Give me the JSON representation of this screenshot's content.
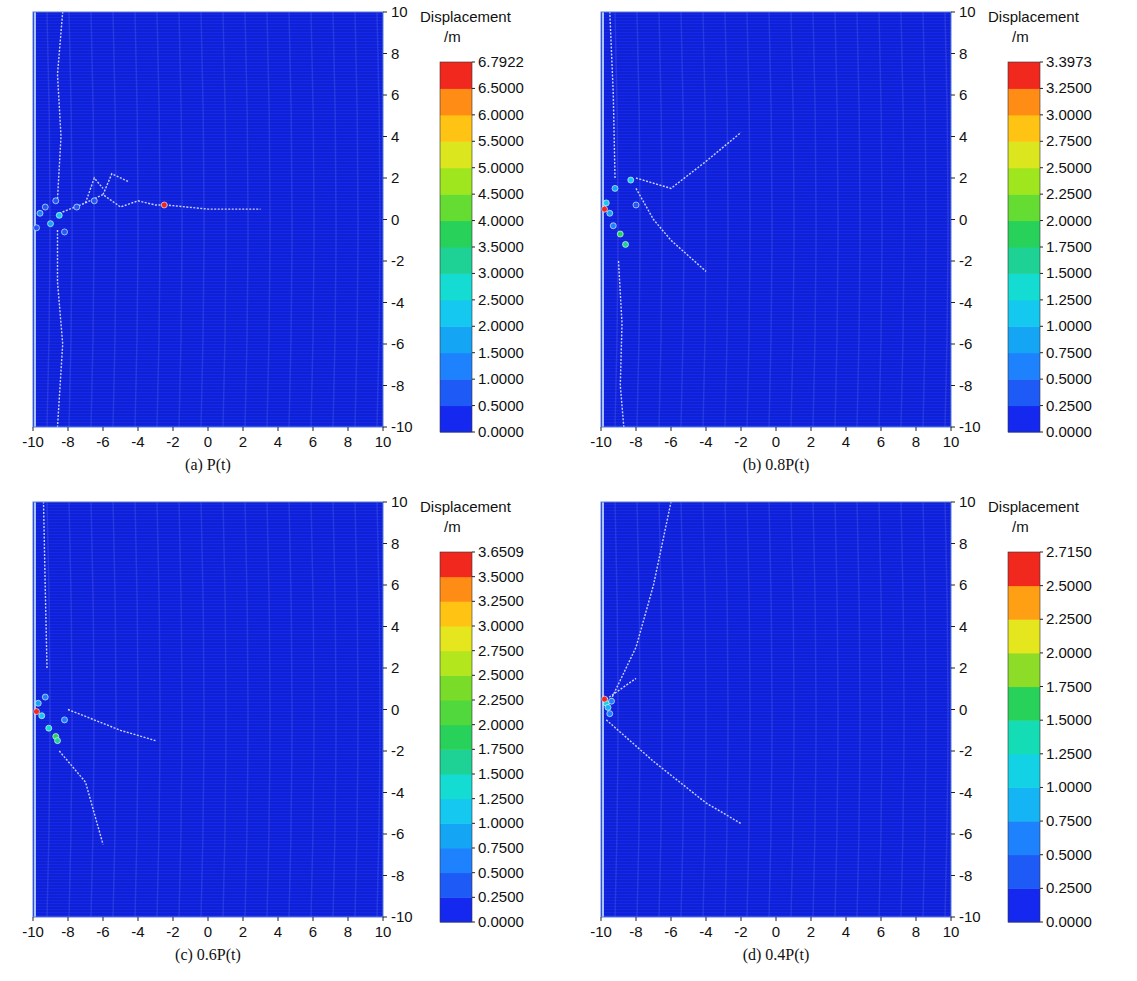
{
  "chart_data": [
    {
      "type": "scatter",
      "title": "(a) P(t)",
      "xlim": [
        -10,
        10
      ],
      "ylim": [
        -10,
        10
      ],
      "xticks": [
        -10,
        -8,
        -6,
        -4,
        -2,
        0,
        2,
        4,
        6,
        8,
        10
      ],
      "yticks": [
        -10,
        -8,
        -6,
        -4,
        -2,
        0,
        2,
        4,
        6,
        8,
        10
      ],
      "color_label": "Displacement",
      "color_unit": "/m",
      "color_range": [
        0,
        6.7922
      ],
      "color_ticks": [
        {
          "value": 0,
          "label": "0.0000"
        },
        {
          "value": 0.5,
          "label": "0.5000"
        },
        {
          "value": 1,
          "label": "1.0000"
        },
        {
          "value": 1.5,
          "label": "1.5000"
        },
        {
          "value": 2,
          "label": "2.0000"
        },
        {
          "value": 2.5,
          "label": "2.5000"
        },
        {
          "value": 3,
          "label": "3.0000"
        },
        {
          "value": 3.5,
          "label": "3.5000"
        },
        {
          "value": 4,
          "label": "4.0000"
        },
        {
          "value": 4.5,
          "label": "4.5000"
        },
        {
          "value": 5,
          "label": "5.0000"
        },
        {
          "value": 5.5,
          "label": "5.5000"
        },
        {
          "value": 6,
          "label": "6.0000"
        },
        {
          "value": 6.5,
          "label": "6.5000"
        },
        {
          "value": 6.7922,
          "label": "6.7922"
        }
      ],
      "colors": [
        "#1428f0",
        "#1e5af5",
        "#1e82ff",
        "#14a5f5",
        "#14c8f0",
        "#14dcd2",
        "#1ed296",
        "#28d25a",
        "#64dc32",
        "#a0e61e",
        "#dce61e",
        "#ffc314",
        "#ff8c14",
        "#f0281e"
      ],
      "cracks": [
        [
          [
            -8.5,
            0.3
          ],
          [
            -7,
            0.8
          ],
          [
            -6,
            1.2
          ],
          [
            -5,
            0.6
          ],
          [
            -4,
            0.9
          ],
          [
            -3,
            0.7
          ],
          [
            -2.4,
            0.7
          ],
          [
            0,
            0.5
          ],
          [
            3,
            0.5
          ]
        ],
        [
          [
            -6,
            1.2
          ],
          [
            -5.5,
            2.2
          ],
          [
            -4.5,
            1.8
          ]
        ],
        [
          [
            -8.6,
            1
          ],
          [
            -8.4,
            4
          ],
          [
            -8.6,
            7
          ],
          [
            -8.3,
            10
          ]
        ],
        [
          [
            -8.6,
            -0.5
          ],
          [
            -8.6,
            -3
          ],
          [
            -8.3,
            -6
          ],
          [
            -8.6,
            -10
          ]
        ],
        [
          [
            -7,
            0.8
          ],
          [
            -6.5,
            2
          ],
          [
            -6,
            1.5
          ]
        ]
      ],
      "fragments": {
        "x": [
          -9.6,
          -9.3,
          -9.0,
          -8.7,
          -8.5,
          -9.8,
          -8.2,
          -2.5,
          -7.5,
          -6.5
        ],
        "y": [
          0.3,
          0.6,
          -0.2,
          0.9,
          0.2,
          -0.4,
          -0.6,
          0.7,
          0.6,
          0.9
        ],
        "values": [
          1.2,
          0.8,
          1.6,
          0.6,
          2.1,
          0.9,
          0.7,
          6.7922,
          0.6,
          0.55
        ]
      }
    },
    {
      "type": "scatter",
      "title": "(b) 0.8P(t)",
      "xlim": [
        -10,
        10
      ],
      "ylim": [
        -10,
        10
      ],
      "xticks": [
        -10,
        -8,
        -6,
        -4,
        -2,
        0,
        2,
        4,
        6,
        8,
        10
      ],
      "yticks": [
        -10,
        -8,
        -6,
        -4,
        -2,
        0,
        2,
        4,
        6,
        8,
        10
      ],
      "color_label": "Displacement",
      "color_unit": "/m",
      "color_range": [
        0,
        3.3973
      ],
      "color_ticks": [
        {
          "value": 0,
          "label": "0.0000"
        },
        {
          "value": 0.25,
          "label": "0.2500"
        },
        {
          "value": 0.5,
          "label": "0.5000"
        },
        {
          "value": 0.75,
          "label": "0.7500"
        },
        {
          "value": 1,
          "label": "1.0000"
        },
        {
          "value": 1.25,
          "label": "1.2500"
        },
        {
          "value": 1.5,
          "label": "1.5000"
        },
        {
          "value": 1.75,
          "label": "1.7500"
        },
        {
          "value": 2,
          "label": "2.0000"
        },
        {
          "value": 2.25,
          "label": "2.2500"
        },
        {
          "value": 2.5,
          "label": "2.5000"
        },
        {
          "value": 2.75,
          "label": "2.7500"
        },
        {
          "value": 3,
          "label": "3.0000"
        },
        {
          "value": 3.25,
          "label": "3.2500"
        },
        {
          "value": 3.3973,
          "label": "3.3973"
        }
      ],
      "colors": [
        "#1428f0",
        "#1e5af5",
        "#1e82ff",
        "#14a5f5",
        "#14c8f0",
        "#14dcd2",
        "#1ed296",
        "#28d25a",
        "#64dc32",
        "#a0e61e",
        "#dce61e",
        "#ffc314",
        "#ff8c14",
        "#f0281e"
      ],
      "cracks": [
        [
          [
            -8,
            2
          ],
          [
            -6,
            1.5
          ],
          [
            -4,
            2.8
          ],
          [
            -2,
            4.2
          ]
        ],
        [
          [
            -9,
            -2
          ],
          [
            -8.8,
            -5
          ],
          [
            -8.9,
            -8
          ],
          [
            -8.7,
            -10
          ]
        ],
        [
          [
            -9.2,
            2
          ],
          [
            -9.3,
            6
          ],
          [
            -9.5,
            10
          ]
        ],
        [
          [
            -8,
            1.5
          ],
          [
            -7,
            0
          ],
          [
            -6,
            -1
          ],
          [
            -4,
            -2.5
          ]
        ]
      ],
      "fragments": {
        "x": [
          -9.7,
          -9.5,
          -9.2,
          -8.9,
          -8.6,
          -9.3,
          -8.3,
          -9.8,
          -8
        ],
        "y": [
          0.8,
          0.3,
          1.5,
          -0.7,
          -1.2,
          -0.3,
          1.9,
          0.5,
          0.7
        ],
        "values": [
          1.1,
          0.9,
          0.8,
          1.9,
          1.6,
          0.6,
          1.2,
          3.3973,
          0.4
        ]
      }
    },
    {
      "type": "scatter",
      "title": "(c) 0.6P(t)",
      "xlim": [
        -10,
        10
      ],
      "ylim": [
        -10,
        10
      ],
      "xticks": [
        -10,
        -8,
        -6,
        -4,
        -2,
        0,
        2,
        4,
        6,
        8,
        10
      ],
      "yticks": [
        -10,
        -8,
        -6,
        -4,
        -2,
        0,
        2,
        4,
        6,
        8,
        10
      ],
      "color_label": "Displacement",
      "color_unit": "/m",
      "color_range": [
        0,
        3.6509
      ],
      "color_ticks": [
        {
          "value": 0,
          "label": "0.0000"
        },
        {
          "value": 0.25,
          "label": "0.2500"
        },
        {
          "value": 0.5,
          "label": "0.5000"
        },
        {
          "value": 0.75,
          "label": "0.7500"
        },
        {
          "value": 1,
          "label": "1.0000"
        },
        {
          "value": 1.25,
          "label": "1.2500"
        },
        {
          "value": 1.5,
          "label": "1.5000"
        },
        {
          "value": 1.75,
          "label": "1.7500"
        },
        {
          "value": 2,
          "label": "2.0000"
        },
        {
          "value": 2.25,
          "label": "2.2500"
        },
        {
          "value": 2.5,
          "label": "2.5000"
        },
        {
          "value": 2.75,
          "label": "2.7500"
        },
        {
          "value": 3,
          "label": "3.0000"
        },
        {
          "value": 3.25,
          "label": "3.2500"
        },
        {
          "value": 3.5,
          "label": "3.5000"
        },
        {
          "value": 3.6509,
          "label": "3.6509"
        }
      ],
      "colors": [
        "#1428f0",
        "#1e5af5",
        "#1e82ff",
        "#14a5f5",
        "#14c8f0",
        "#14dcd2",
        "#1ed296",
        "#28d25a",
        "#50d83c",
        "#78dc28",
        "#b4e61e",
        "#e6e61e",
        "#ffc314",
        "#ff8c14",
        "#f0281e"
      ],
      "cracks": [
        [
          [
            -8.5,
            -2
          ],
          [
            -7,
            -3.5
          ],
          [
            -6,
            -6.5
          ]
        ],
        [
          [
            -9.2,
            2
          ],
          [
            -9.3,
            6
          ],
          [
            -9.4,
            10
          ]
        ],
        [
          [
            -8,
            0
          ],
          [
            -5,
            -1
          ],
          [
            -3,
            -1.5
          ]
        ]
      ],
      "fragments": {
        "x": [
          -9.7,
          -9.5,
          -9.1,
          -8.7,
          -8.6,
          -9.3,
          -9.8,
          -8.2
        ],
        "y": [
          0.3,
          -0.3,
          -0.9,
          -1.3,
          -1.5,
          0.6,
          -0.1,
          -0.5
        ],
        "values": [
          0.9,
          1.1,
          1.3,
          1.9,
          1.7,
          0.6,
          3.6509,
          0.5
        ]
      }
    },
    {
      "type": "scatter",
      "title": "(d) 0.4P(t)",
      "xlim": [
        -10,
        10
      ],
      "ylim": [
        -10,
        10
      ],
      "xticks": [
        -10,
        -8,
        -6,
        -4,
        -2,
        0,
        2,
        4,
        6,
        8,
        10
      ],
      "yticks": [
        -10,
        -8,
        -6,
        -4,
        -2,
        0,
        2,
        4,
        6,
        8,
        10
      ],
      "color_label": "Displacement",
      "color_unit": "/m",
      "color_range": [
        0,
        2.715
      ],
      "color_ticks": [
        {
          "value": 0,
          "label": "0.0000"
        },
        {
          "value": 0.25,
          "label": "0.2500"
        },
        {
          "value": 0.5,
          "label": "0.5000"
        },
        {
          "value": 0.75,
          "label": "0.7500"
        },
        {
          "value": 1,
          "label": "1.0000"
        },
        {
          "value": 1.25,
          "label": "1.2500"
        },
        {
          "value": 1.5,
          "label": "1.5000"
        },
        {
          "value": 1.75,
          "label": "1.7500"
        },
        {
          "value": 2,
          "label": "2.0000"
        },
        {
          "value": 2.25,
          "label": "2.2500"
        },
        {
          "value": 2.5,
          "label": "2.5000"
        },
        {
          "value": 2.715,
          "label": "2.7150"
        }
      ],
      "colors": [
        "#1428f0",
        "#1e5af5",
        "#1e82ff",
        "#14b4f5",
        "#14d2e6",
        "#14dcb4",
        "#28d25a",
        "#8cdc28",
        "#e6e61e",
        "#ffa014",
        "#f0281e"
      ],
      "cracks": [
        [
          [
            -9.7,
            0
          ],
          [
            -8,
            3
          ],
          [
            -7,
            6
          ],
          [
            -6,
            10
          ]
        ],
        [
          [
            -9.7,
            -0.5
          ],
          [
            -7,
            -2.5
          ],
          [
            -4,
            -4.5
          ],
          [
            -2,
            -5.5
          ]
        ],
        [
          [
            -9.7,
            0.5
          ],
          [
            -8,
            1.5
          ]
        ]
      ],
      "fragments": {
        "x": [
          -9.7,
          -9.6,
          -9.4,
          -9.8,
          -9.5
        ],
        "y": [
          0.3,
          0.1,
          0.4,
          0.5,
          -0.2
        ],
        "values": [
          1.2,
          0.8,
          0.6,
          2.715,
          0.5
        ]
      }
    }
  ]
}
